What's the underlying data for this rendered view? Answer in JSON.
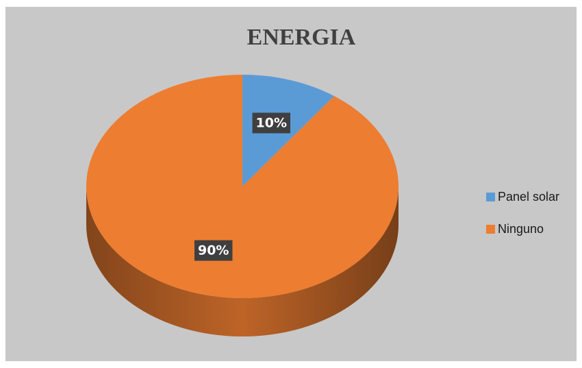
{
  "chart_data": {
    "type": "pie",
    "title": "ENERGIA",
    "categories": [
      "Panel solar",
      "Ninguno"
    ],
    "values": [
      10,
      90
    ],
    "value_labels": [
      "10%",
      "90%"
    ],
    "colors": [
      "#5b9bd5",
      "#ed7d31"
    ],
    "legend": "right"
  }
}
